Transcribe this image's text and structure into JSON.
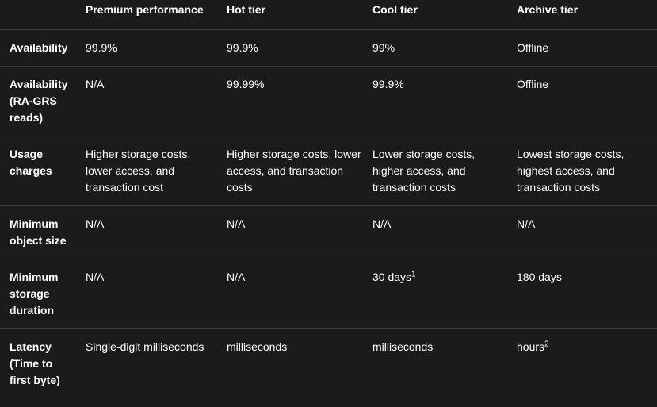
{
  "table": {
    "headers": {
      "row_label": "",
      "premium": "Premium performance",
      "hot": "Hot tier",
      "cool": "Cool tier",
      "archive": "Archive tier"
    },
    "rows": [
      {
        "label": "Availability",
        "premium": "99.9%",
        "hot": "99.9%",
        "cool": "99%",
        "archive": "Offline"
      },
      {
        "label": "Availability (RA-GRS reads)",
        "premium": "N/A",
        "hot": "99.99%",
        "cool": "99.9%",
        "archive": "Offline"
      },
      {
        "label": "Usage charges",
        "premium": "Higher storage costs, lower access, and transaction cost",
        "hot": "Higher storage costs, lower access, and transaction costs",
        "cool": "Lower storage costs, higher access, and transaction costs",
        "archive": "Lowest storage costs, highest access, and transaction costs"
      },
      {
        "label": "Minimum object size",
        "premium": "N/A",
        "hot": "N/A",
        "cool": "N/A",
        "archive": "N/A"
      },
      {
        "label": "Minimum storage duration",
        "premium": "N/A",
        "hot": "N/A",
        "cool": "30 days",
        "cool_sup": "1",
        "archive": "180 days"
      },
      {
        "label": "Latency (Time to first byte)",
        "premium": "Single-digit milliseconds",
        "hot": "milliseconds",
        "cool": "milliseconds",
        "archive": "hours",
        "archive_sup": "2"
      }
    ]
  },
  "colors": {
    "background": "#1b1b1b",
    "text": "#ffffff",
    "border": "#3a3a3a"
  }
}
